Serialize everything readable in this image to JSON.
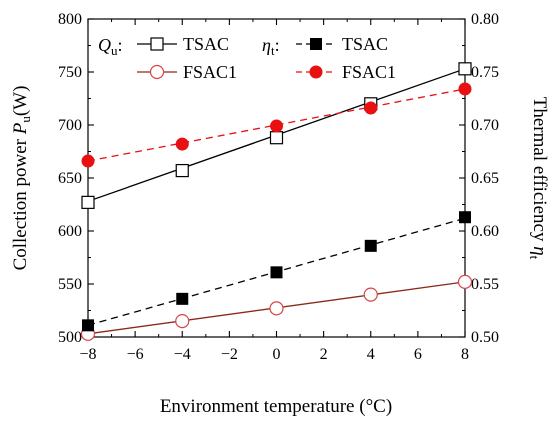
{
  "chart_data": {
    "type": "line",
    "xlabel": "Environment temperature  (°C)",
    "ylabel_left": {
      "main": "Collection power ",
      "symbol": "P",
      "sub": "u",
      "unit": "(W)"
    },
    "ylabel_right": {
      "main": "Thermal efficiency ",
      "symbol": "η",
      "sub": "t"
    },
    "xlim": [
      -8,
      8
    ],
    "ylim_left": [
      500,
      800
    ],
    "ylim_right": [
      0.5,
      0.8
    ],
    "x_ticks": [
      "−8",
      "−6",
      "−4",
      "−2",
      "0",
      "2",
      "4",
      "6",
      "8"
    ],
    "y_left_ticks": [
      "500",
      "550",
      "600",
      "650",
      "700",
      "750",
      "800"
    ],
    "y_right_ticks": [
      "0.50",
      "0.55",
      "0.60",
      "0.65",
      "0.70",
      "0.75",
      "0.80"
    ],
    "grid": false,
    "legend_groups": [
      {
        "symbol": "Q",
        "sub": "u",
        "suffix": ":",
        "entries": [
          "TSAC",
          "FSAC1"
        ]
      },
      {
        "symbol": "η",
        "sub": "t",
        "suffix": ":",
        "entries": [
          "TSAC",
          "FSAC1"
        ]
      }
    ],
    "series": [
      {
        "name": "TSAC",
        "group": "Qu",
        "axis": "left",
        "marker": "open-square",
        "line": "solid",
        "color": "#000000",
        "x": [
          -8,
          -4,
          0,
          4,
          8
        ],
        "y": [
          627,
          657,
          688,
          720,
          753
        ],
        "fit_y": [
          628,
          753
        ]
      },
      {
        "name": "FSAC1",
        "group": "Qu",
        "axis": "left",
        "marker": "open-circle",
        "line": "solid",
        "color": "#d64545",
        "fit_color": "#8b2a1a",
        "x": [
          -8,
          -4,
          0,
          4,
          8
        ],
        "y": [
          503,
          515,
          527,
          540,
          552
        ],
        "fit_y": [
          503,
          552
        ]
      },
      {
        "name": "TSAC",
        "group": "eta",
        "axis": "right",
        "marker": "filled-square",
        "line": "dashed",
        "color": "#000000",
        "x": [
          -8,
          -4,
          0,
          4,
          8
        ],
        "y": [
          0.511,
          0.536,
          0.561,
          0.586,
          0.613
        ],
        "fit_y": [
          0.511,
          0.612
        ]
      },
      {
        "name": "FSAC1",
        "group": "eta",
        "axis": "right",
        "marker": "filled-circle",
        "line": "dashed",
        "color": "#e81010",
        "x": [
          -8,
          -4,
          0,
          4,
          8
        ],
        "y": [
          0.666,
          0.682,
          0.699,
          0.716,
          0.734
        ],
        "fit_y": [
          0.666,
          0.734
        ]
      }
    ]
  }
}
